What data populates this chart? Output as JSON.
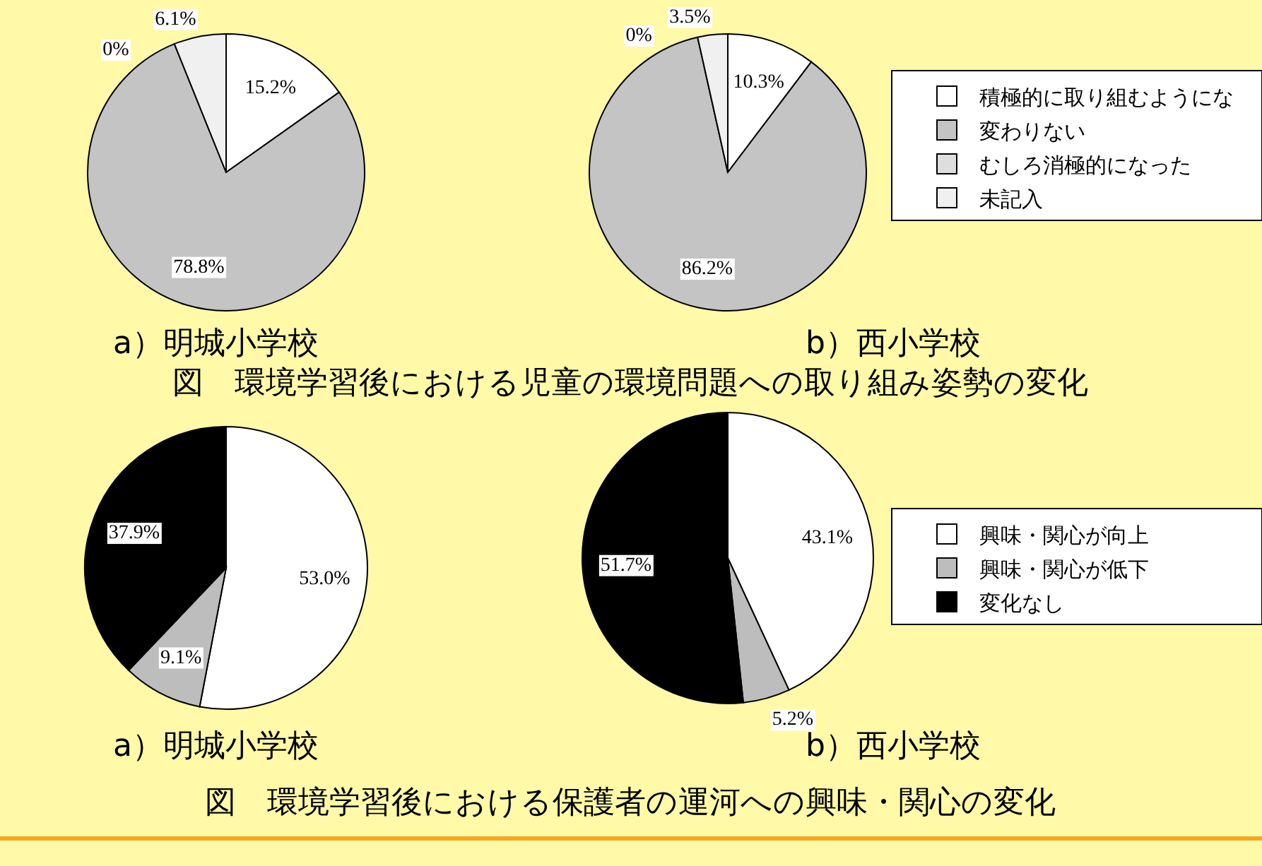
{
  "chart_data": [
    {
      "type": "pie",
      "title": "a）明城小学校",
      "categories": [
        "積極的に取り組むようにな",
        "変わりない",
        "むしろ消極的になった",
        "未記入"
      ],
      "values": [
        15.2,
        78.8,
        0,
        6.1
      ],
      "value_labels": [
        "15.2%",
        "78.8%",
        "0%",
        "6.1%"
      ],
      "colors": [
        "#ffffff",
        "#c4c4c4",
        "#dedede",
        "#f0f0f0"
      ],
      "legend": "right"
    },
    {
      "type": "pie",
      "title": "b）西小学校",
      "categories": [
        null,
        null,
        null,
        null
      ],
      "values": [
        10.3,
        86.2,
        0,
        3.5
      ],
      "value_labels": [
        "10.3%",
        "86.2%",
        "0%",
        "3.5%"
      ],
      "colors": [
        "#ffffff",
        "#c4c4c4",
        "#dedede",
        "#f0f0f0"
      ],
      "annotations": [
        "図　環境学習後における児童の環境問題への取り組み姿勢の変化"
      ]
    },
    {
      "type": "pie",
      "title": "a）明城小学校",
      "categories": [
        "興味・関心が向上",
        "興味・関心が低下",
        "変化なし"
      ],
      "values": [
        53.0,
        9.1,
        37.9
      ],
      "value_labels": [
        "53.0%",
        "9.1%",
        "37.9%"
      ],
      "colors": [
        "#ffffff",
        "#bdbdbd",
        "#000000"
      ],
      "legend": "right"
    },
    {
      "type": "pie",
      "title": "b）西小学校",
      "categories": [
        null,
        null,
        null
      ],
      "values": [
        43.1,
        5.2,
        51.7
      ],
      "value_labels": [
        "43.1%",
        "5.2%",
        "51.7%"
      ],
      "colors": [
        "#ffffff",
        "#bdbdbd",
        "#000000"
      ],
      "annotations": [
        "図　環境学習後における保護者の運河への興味・関心の変化"
      ]
    }
  ]
}
